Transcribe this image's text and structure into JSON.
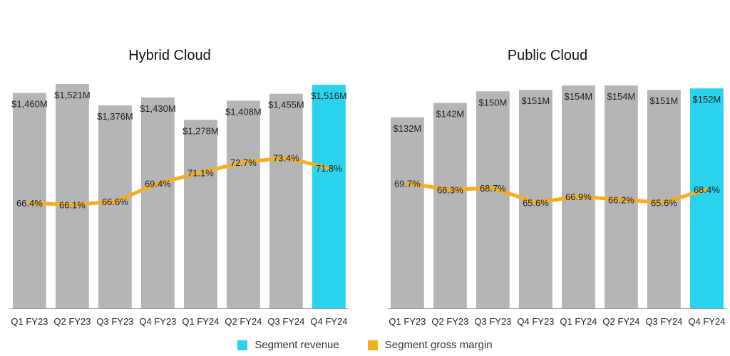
{
  "chart_data": [
    {
      "type": "bar",
      "title": "Hybrid Cloud",
      "categories": [
        "Q1 FY23",
        "Q2 FY23",
        "Q3 FY23",
        "Q4 FY23",
        "Q1 FY24",
        "Q2 FY24",
        "Q3 FY24",
        "Q4 FY24"
      ],
      "series": [
        {
          "name": "Segment revenue",
          "values": [
            1460,
            1521,
            1376,
            1430,
            1278,
            1408,
            1455,
            1516
          ],
          "labels": [
            "$1,460M",
            "$1,521M",
            "$1,376M",
            "$1,430M",
            "$1,278M",
            "$1,408M",
            "$1,455M",
            "$1,516M"
          ]
        },
        {
          "name": "Segment gross margin",
          "values": [
            66.4,
            66.1,
            66.6,
            69.4,
            71.1,
            72.7,
            73.4,
            71.8
          ],
          "labels": [
            "66.4%",
            "66.1%",
            "66.6%",
            "69.4%",
            "71.1%",
            "72.7%",
            "73.4%",
            "71.8%"
          ]
        }
      ],
      "highlight_index": 7,
      "ylim": [
        0,
        1550
      ],
      "margin_range": [
        55,
        77
      ]
    },
    {
      "type": "bar",
      "title": "Public Cloud",
      "categories": [
        "Q1 FY23",
        "Q2 FY23",
        "Q3 FY23",
        "Q4 FY23",
        "Q1 FY24",
        "Q2 FY24",
        "Q3 FY24",
        "Q4 FY24"
      ],
      "series": [
        {
          "name": "Segment revenue",
          "values": [
            132,
            142,
            150,
            151,
            154,
            154,
            151,
            152
          ],
          "labels": [
            "$132M",
            "$142M",
            "$150M",
            "$151M",
            "$154M",
            "$154M",
            "$151M",
            "$152M"
          ]
        },
        {
          "name": "Segment gross margin",
          "values": [
            69.7,
            68.3,
            68.7,
            65.6,
            66.9,
            66.2,
            65.6,
            68.4
          ],
          "labels": [
            "69.7%",
            "68.3%",
            "68.7%",
            "65.6%",
            "66.9%",
            "66.2%",
            "65.6%",
            "68.4%"
          ]
        }
      ],
      "highlight_index": 7,
      "ylim": [
        0,
        158
      ],
      "margin_range": [
        50,
        80
      ]
    }
  ],
  "legend": {
    "items": [
      {
        "label": "Segment revenue",
        "color": "#29d3ee"
      },
      {
        "label": "Segment gross margin",
        "color": "#f7ae1c"
      }
    ]
  },
  "colors": {
    "bar": "#b5b5b5",
    "highlight": "#29d3ee",
    "line": "#f7ae1c",
    "axis": "#999999"
  }
}
